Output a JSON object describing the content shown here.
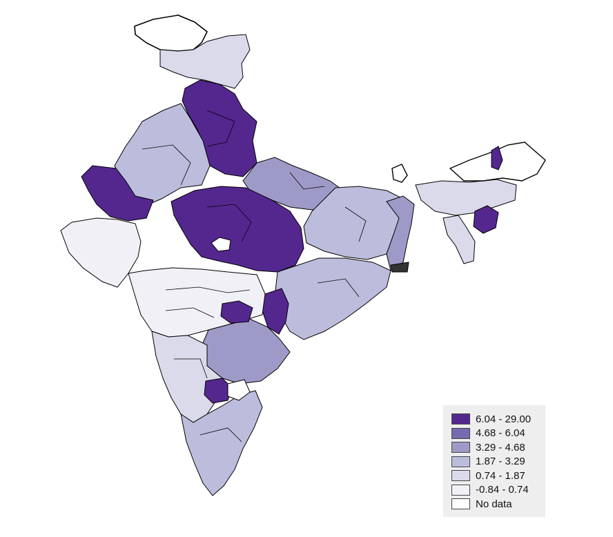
{
  "map": {
    "legend": [
      {
        "label": "6.04 - 29.00",
        "color": "#54278f"
      },
      {
        "label": "4.68 - 6.04",
        "color": "#756bb1"
      },
      {
        "label": "3.29 - 4.68",
        "color": "#9e9ac8"
      },
      {
        "label": "1.87 - 3.29",
        "color": "#bcbddc"
      },
      {
        "label": "0.74 - 1.87",
        "color": "#dadaeb"
      },
      {
        "label": "-0.84 - 0.74",
        "color": "#f2f0f7"
      },
      {
        "label": "No data",
        "color": "#ffffff"
      }
    ],
    "border_color": "#000000"
  }
}
